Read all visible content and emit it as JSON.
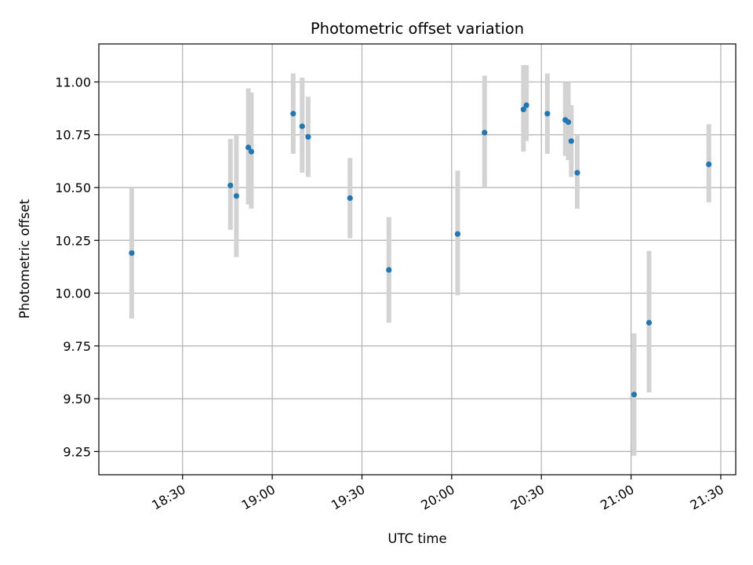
{
  "chart_data": {
    "type": "scatter",
    "title": "Photometric offset variation",
    "xlabel": "UTC time",
    "ylabel": "Photometric offset",
    "grid": true,
    "x_tick_labels": [
      "18:30",
      "19:00",
      "19:30",
      "20:00",
      "20:30",
      "21:00",
      "21:30"
    ],
    "y_tick_labels": [
      "9.25",
      "9.50",
      "9.75",
      "10.00",
      "10.25",
      "10.50",
      "10.75",
      "11.00"
    ],
    "xlim": [
      "18:02",
      "21:35"
    ],
    "ylim": [
      9.14,
      11.18
    ],
    "colors": {
      "point": "#1f77b4",
      "errorbar": "#d3d3d3",
      "grid": "#b0b0b0"
    },
    "series": [
      {
        "points": [
          {
            "x": "18:13",
            "y": 10.19,
            "low": 9.88,
            "high": 10.5
          },
          {
            "x": "18:46",
            "y": 10.51,
            "low": 10.3,
            "high": 10.73
          },
          {
            "x": "18:48",
            "y": 10.46,
            "low": 10.17,
            "high": 10.75
          },
          {
            "x": "18:52",
            "y": 10.69,
            "low": 10.42,
            "high": 10.97
          },
          {
            "x": "18:53",
            "y": 10.67,
            "low": 10.4,
            "high": 10.95
          },
          {
            "x": "19:07",
            "y": 10.85,
            "low": 10.66,
            "high": 11.04
          },
          {
            "x": "19:10",
            "y": 10.79,
            "low": 10.57,
            "high": 11.02
          },
          {
            "x": "19:12",
            "y": 10.74,
            "low": 10.55,
            "high": 10.93
          },
          {
            "x": "19:26",
            "y": 10.45,
            "low": 10.26,
            "high": 10.64
          },
          {
            "x": "19:39",
            "y": 10.11,
            "low": 9.86,
            "high": 10.36
          },
          {
            "x": "20:02",
            "y": 10.28,
            "low": 9.99,
            "high": 10.58
          },
          {
            "x": "20:11",
            "y": 10.76,
            "low": 10.5,
            "high": 11.03
          },
          {
            "x": "20:24",
            "y": 10.87,
            "low": 10.67,
            "high": 11.08
          },
          {
            "x": "20:25",
            "y": 10.89,
            "low": 10.72,
            "high": 11.08
          },
          {
            "x": "20:32",
            "y": 10.85,
            "low": 10.66,
            "high": 11.04
          },
          {
            "x": "20:38",
            "y": 10.82,
            "low": 10.65,
            "high": 11.0
          },
          {
            "x": "20:39",
            "y": 10.81,
            "low": 10.63,
            "high": 11.0
          },
          {
            "x": "20:40",
            "y": 10.72,
            "low": 10.55,
            "high": 10.89
          },
          {
            "x": "20:42",
            "y": 10.57,
            "low": 10.4,
            "high": 10.75
          },
          {
            "x": "21:01",
            "y": 9.52,
            "low": 9.23,
            "high": 9.81
          },
          {
            "x": "21:06",
            "y": 9.86,
            "low": 9.53,
            "high": 10.2
          },
          {
            "x": "21:26",
            "y": 10.61,
            "low": 10.43,
            "high": 10.8
          }
        ]
      }
    ]
  }
}
